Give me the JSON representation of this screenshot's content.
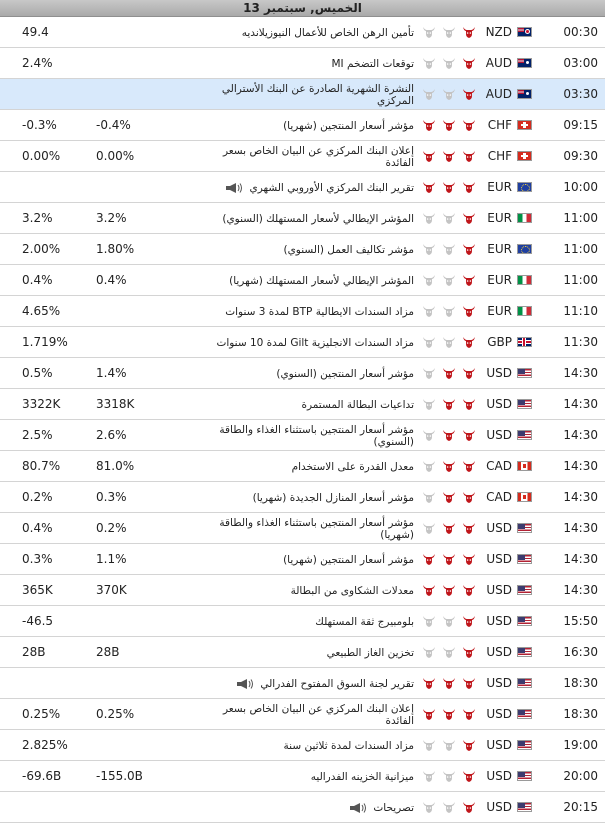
{
  "header": {
    "date": "الخميس, سبتمبر 13"
  },
  "colors": {
    "bull_active": "#c0161b",
    "bull_inactive": "#c4c4c4",
    "highlight_row": "#d8e9fb"
  },
  "rows": [
    {
      "time": "00:30",
      "flag": "nzd-flag",
      "currency": "NZD",
      "impact": 1,
      "event": "تأمين الرهن الخاص للأعمال النيوزيلانديه",
      "speech": false,
      "previous": "",
      "actual": "49.4"
    },
    {
      "time": "03:00",
      "flag": "aud-flag",
      "currency": "AUD",
      "impact": 1,
      "event": "توقعات التضخم MI",
      "speech": false,
      "previous": "",
      "actual": "2.4%"
    },
    {
      "time": "03:30",
      "flag": "aud-flag",
      "currency": "AUD",
      "impact": 1,
      "event": "النشرة الشهرية الصادرة عن البنك الأسترالي المركزي",
      "speech": false,
      "previous": "",
      "actual": "",
      "highlight": true
    },
    {
      "time": "09:15",
      "flag": "chf-flag",
      "currency": "CHF",
      "impact": 3,
      "event": "مؤشر أسعار المنتجين (شهريا)",
      "speech": false,
      "previous": "-0.4%",
      "actual": "-0.3%"
    },
    {
      "time": "09:30",
      "flag": "chf-flag",
      "currency": "CHF",
      "impact": 3,
      "event": "إعلان البنك المركزي عن البيان الخاص بسعر الفائدة",
      "speech": false,
      "previous": "0.00%",
      "actual": "0.00%"
    },
    {
      "time": "10:00",
      "flag": "eur-flag",
      "currency": "EUR",
      "impact": 3,
      "event": "تقرير البنك المركزي الأوروبي الشهري",
      "speech": true,
      "previous": "",
      "actual": ""
    },
    {
      "time": "11:00",
      "flag": "ita-flag",
      "currency": "EUR",
      "impact": 1,
      "event": "المؤشر الإيطالي لأسعار المستهلك (السنوي)",
      "speech": false,
      "previous": "3.2%",
      "actual": "3.2%"
    },
    {
      "time": "11:00",
      "flag": "eur-flag",
      "currency": "EUR",
      "impact": 1,
      "event": "مؤشر تكاليف العمل (السنوي)",
      "speech": false,
      "previous": "1.80%",
      "actual": "2.00%"
    },
    {
      "time": "11:00",
      "flag": "ita-flag",
      "currency": "EUR",
      "impact": 1,
      "event": "المؤشر الإيطالي لأسعار المستهلك (شهريا)",
      "speech": false,
      "previous": "0.4%",
      "actual": "0.4%"
    },
    {
      "time": "11:10",
      "flag": "ita-flag",
      "currency": "EUR",
      "impact": 1,
      "event": "مزاد السندات الايطالية BTP لمدة 3 سنوات",
      "speech": false,
      "previous": "",
      "actual": "4.65%"
    },
    {
      "time": "11:30",
      "flag": "gbp-flag",
      "currency": "GBP",
      "impact": 1,
      "event": "مزاد السندات الانجليزية Gilt لمدة 10 سنوات",
      "speech": false,
      "previous": "",
      "actual": "1.719%"
    },
    {
      "time": "14:30",
      "flag": "usd-flag",
      "currency": "USD",
      "impact": 2,
      "event": "مؤشر أسعار المنتجين (السنوي)",
      "speech": false,
      "previous": "1.4%",
      "actual": "0.5%"
    },
    {
      "time": "14:30",
      "flag": "usd-flag",
      "currency": "USD",
      "impact": 2,
      "event": "تداعيات البطالة المستمرة",
      "speech": false,
      "previous": "3318K",
      "actual": "3322K"
    },
    {
      "time": "14:30",
      "flag": "usd-flag",
      "currency": "USD",
      "impact": 2,
      "event": "مؤشر أسعار المنتجين باستثناء الغذاء والطاقة (السنوي)",
      "speech": false,
      "previous": "2.6%",
      "actual": "2.5%"
    },
    {
      "time": "14:30",
      "flag": "can-flag",
      "currency": "CAD",
      "impact": 2,
      "event": "معدل القدرة على الاستخدام",
      "speech": false,
      "previous": "81.0%",
      "actual": "80.7%"
    },
    {
      "time": "14:30",
      "flag": "can-flag",
      "currency": "CAD",
      "impact": 2,
      "event": "مؤشر أسعار المنازل الجديدة (شهريا)",
      "speech": false,
      "previous": "0.3%",
      "actual": "0.2%"
    },
    {
      "time": "14:30",
      "flag": "usd-flag",
      "currency": "USD",
      "impact": 2,
      "event": "مؤشر أسعار المنتجين باستثناء الغذاء والطاقة (شهريا)",
      "speech": false,
      "previous": "0.2%",
      "actual": "0.4%"
    },
    {
      "time": "14:30",
      "flag": "usd-flag",
      "currency": "USD",
      "impact": 3,
      "event": "مؤشر أسعار المنتجين (شهريا)",
      "speech": false,
      "previous": "1.1%",
      "actual": "0.3%"
    },
    {
      "time": "14:30",
      "flag": "usd-flag",
      "currency": "USD",
      "impact": 3,
      "event": "معدلات الشكاوى من البطالة",
      "speech": false,
      "previous": "370K",
      "actual": "365K"
    },
    {
      "time": "15:50",
      "flag": "usd-flag",
      "currency": "USD",
      "impact": 1,
      "event": "بلومبيرج ثقة المستهلك",
      "speech": false,
      "previous": "",
      "actual": "-46.5"
    },
    {
      "time": "16:30",
      "flag": "usd-flag",
      "currency": "USD",
      "impact": 1,
      "event": "تخزين الغاز الطبيعي",
      "speech": false,
      "previous": "28B",
      "actual": "28B"
    },
    {
      "time": "18:30",
      "flag": "usd-flag",
      "currency": "USD",
      "impact": 3,
      "event": "تقرير لجنة السوق المفتوح الفدرالي",
      "speech": true,
      "previous": "",
      "actual": ""
    },
    {
      "time": "18:30",
      "flag": "usd-flag",
      "currency": "USD",
      "impact": 3,
      "event": "إعلان البنك المركزي عن البيان الخاص بسعر الفائدة",
      "speech": false,
      "previous": "0.25%",
      "actual": "0.25%"
    },
    {
      "time": "19:00",
      "flag": "usd-flag",
      "currency": "USD",
      "impact": 1,
      "event": "مزاد السندات لمدة ثلاثين سنة",
      "speech": false,
      "previous": "",
      "actual": "2.825%"
    },
    {
      "time": "20:00",
      "flag": "usd-flag",
      "currency": "USD",
      "impact": 1,
      "event": "ميزانية الخزينه الفدراليه",
      "speech": false,
      "previous": "-155.0B",
      "actual": "-69.6B"
    },
    {
      "time": "20:15",
      "flag": "usd-flag",
      "currency": "USD",
      "impact": 1,
      "event": "تصريحات",
      "speech": true,
      "previous": "",
      "actual": ""
    }
  ]
}
